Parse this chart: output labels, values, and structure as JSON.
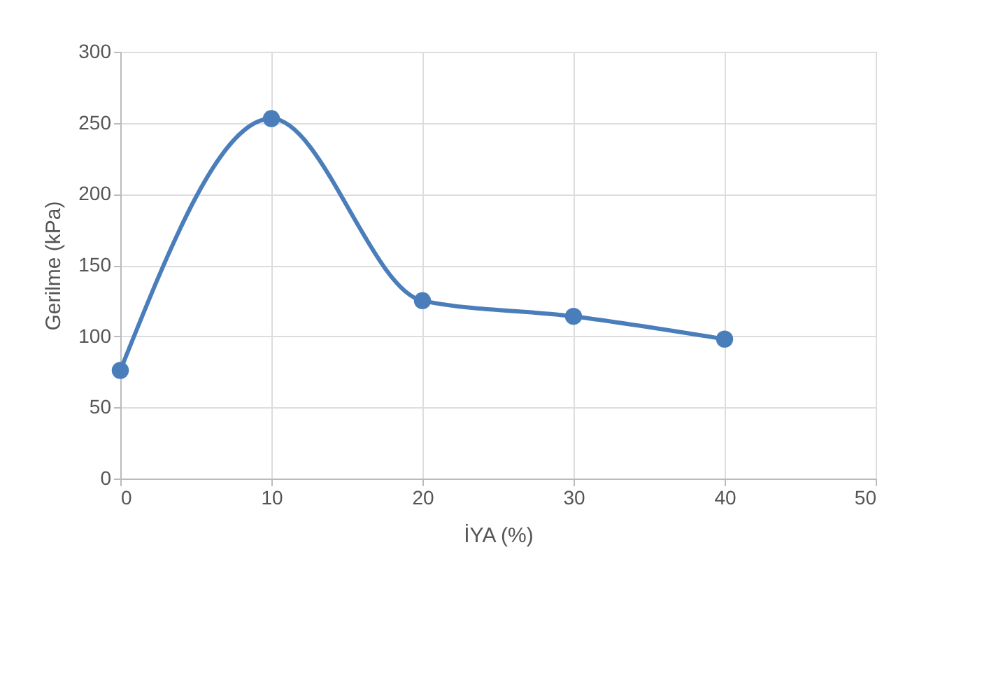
{
  "chart_data": {
    "type": "line",
    "xlabel": "İYA (%)",
    "ylabel": "Gerilme (kPa)",
    "x": [
      0,
      10,
      20,
      30,
      40
    ],
    "series": [
      {
        "color": "#4a7ebb",
        "values": [
          76,
          253,
          125,
          114,
          98
        ]
      }
    ],
    "xlim": [
      0,
      50
    ],
    "xticks": [
      0,
      10,
      20,
      30,
      40,
      50
    ],
    "ylim": [
      0,
      300
    ],
    "yticks": [
      0,
      50,
      100,
      150,
      200,
      250,
      300
    ],
    "grid": true,
    "marker": "circle",
    "line_style": "solid"
  }
}
